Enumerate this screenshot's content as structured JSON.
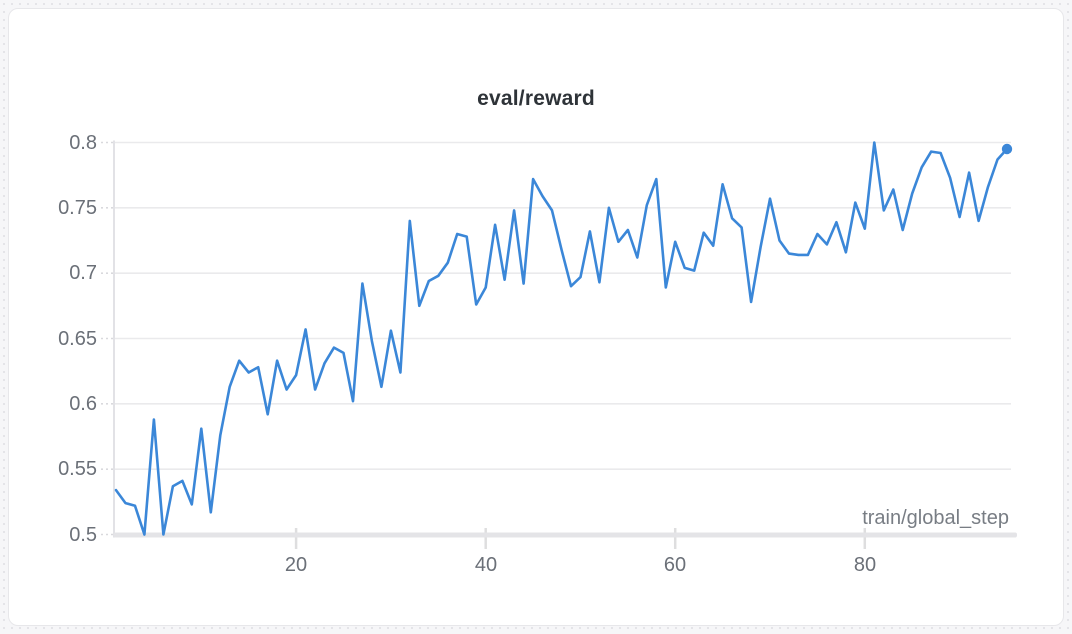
{
  "panel": {
    "title": "eval/reward",
    "x_axis_label": "train/global_step"
  },
  "chart_data": {
    "type": "line",
    "title": "eval/reward",
    "xlabel": "train/global_step",
    "ylabel": "",
    "legend": "none",
    "grid": "horizontal",
    "line_color": "#3b87d8",
    "end_marker": true,
    "ylim": [
      0.5,
      0.8
    ],
    "xlim": [
      1,
      95
    ],
    "y_ticks": [
      0.8,
      0.75,
      0.7,
      0.65,
      0.6,
      0.55,
      0.5
    ],
    "y_tick_labels": [
      "0.8",
      "0.75",
      "0.7",
      "0.65",
      "0.6",
      "0.55",
      "0.5"
    ],
    "x_ticks": [
      20,
      40,
      60,
      80
    ],
    "x_tick_labels": [
      "20",
      "40",
      "60",
      "80"
    ],
    "x": [
      1,
      2,
      3,
      4,
      5,
      6,
      7,
      8,
      9,
      10,
      11,
      12,
      13,
      14,
      15,
      16,
      17,
      18,
      19,
      20,
      21,
      22,
      23,
      24,
      25,
      26,
      27,
      28,
      29,
      30,
      31,
      32,
      33,
      34,
      35,
      36,
      37,
      38,
      39,
      40,
      41,
      42,
      43,
      44,
      45,
      46,
      47,
      48,
      49,
      50,
      51,
      52,
      53,
      54,
      55,
      56,
      57,
      58,
      59,
      60,
      61,
      62,
      63,
      64,
      65,
      66,
      67,
      68,
      69,
      70,
      71,
      72,
      73,
      74,
      75,
      76,
      77,
      78,
      79,
      80,
      81,
      82,
      83,
      84,
      85,
      86,
      87,
      88,
      89,
      90,
      91,
      92,
      93,
      94,
      95
    ],
    "series": [
      {
        "name": "eval/reward",
        "values": [
          0.534,
          0.524,
          0.522,
          0.5,
          0.588,
          0.5,
          0.537,
          0.541,
          0.523,
          0.581,
          0.517,
          0.576,
          0.613,
          0.633,
          0.624,
          0.628,
          0.592,
          0.633,
          0.611,
          0.622,
          0.657,
          0.611,
          0.631,
          0.643,
          0.639,
          0.602,
          0.692,
          0.648,
          0.613,
          0.656,
          0.624,
          0.74,
          0.675,
          0.694,
          0.698,
          0.708,
          0.73,
          0.728,
          0.676,
          0.689,
          0.737,
          0.695,
          0.748,
          0.692,
          0.772,
          0.759,
          0.748,
          0.718,
          0.69,
          0.697,
          0.732,
          0.693,
          0.75,
          0.724,
          0.733,
          0.712,
          0.752,
          0.772,
          0.689,
          0.724,
          0.704,
          0.702,
          0.731,
          0.721,
          0.768,
          0.742,
          0.735,
          0.678,
          0.72,
          0.757,
          0.725,
          0.715,
          0.714,
          0.714,
          0.73,
          0.722,
          0.739,
          0.716,
          0.754,
          0.734,
          0.8,
          0.748,
          0.764,
          0.733,
          0.761,
          0.781,
          0.793,
          0.792,
          0.773,
          0.743,
          0.777,
          0.74,
          0.766,
          0.787,
          0.795
        ]
      }
    ]
  }
}
